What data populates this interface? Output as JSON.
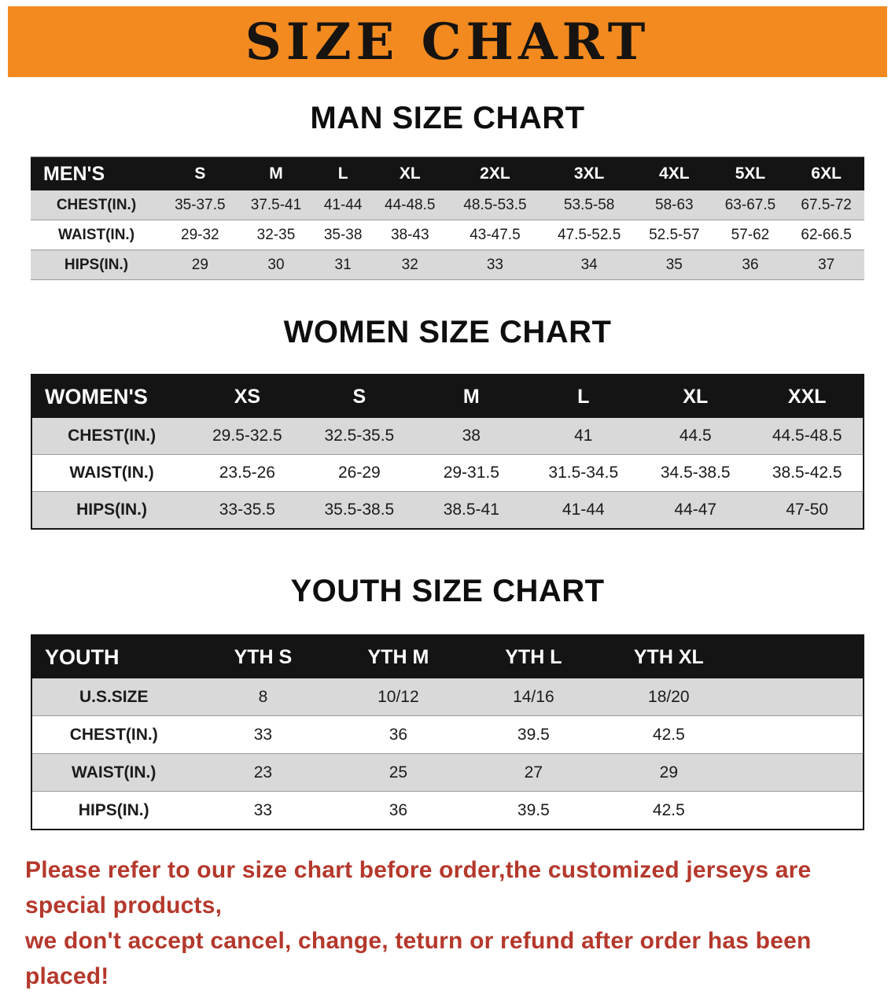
{
  "banner": {
    "title": "SIZE CHART"
  },
  "sections": [
    {
      "kind": "men",
      "heading": "MAN SIZE CHART",
      "table": {
        "header": [
          "MEN'S",
          "S",
          "M",
          "L",
          "XL",
          "2XL",
          "3XL",
          "4XL",
          "5XL",
          "6XL"
        ],
        "rows": [
          [
            "CHEST(IN.)",
            "35-37.5",
            "37.5-41",
            "41-44",
            "44-48.5",
            "48.5-53.5",
            "53.5-58",
            "58-63",
            "63-67.5",
            "67.5-72"
          ],
          [
            "WAIST(IN.)",
            "29-32",
            "32-35",
            "35-38",
            "38-43",
            "43-47.5",
            "47.5-52.5",
            "52.5-57",
            "57-62",
            "62-66.5"
          ],
          [
            "HIPS(IN.)",
            "29",
            "30",
            "31",
            "32",
            "33",
            "34",
            "35",
            "36",
            "37"
          ]
        ]
      }
    },
    {
      "kind": "women",
      "heading": "WOMEN SIZE CHART",
      "table": {
        "header": [
          "WOMEN'S",
          "XS",
          "S",
          "M",
          "L",
          "XL",
          "XXL"
        ],
        "rows": [
          [
            "CHEST(IN.)",
            "29.5-32.5",
            "32.5-35.5",
            "38",
            "41",
            "44.5",
            "44.5-48.5"
          ],
          [
            "WAIST(IN.)",
            "23.5-26",
            "26-29",
            "29-31.5",
            "31.5-34.5",
            "34.5-38.5",
            "38.5-42.5"
          ],
          [
            "HIPS(IN.)",
            "33-35.5",
            "35.5-38.5",
            "38.5-41",
            "41-44",
            "44-47",
            "47-50"
          ]
        ]
      }
    },
    {
      "kind": "youth",
      "heading": "YOUTH SIZE CHART",
      "table": {
        "header": [
          "YOUTH",
          "YTH S",
          "YTH M",
          "YTH L",
          "YTH XL"
        ],
        "rows": [
          [
            "U.S.SIZE",
            "8",
            "10/12",
            "14/16",
            "18/20"
          ],
          [
            "CHEST(IN.)",
            "33",
            "36",
            "39.5",
            "42.5"
          ],
          [
            "WAIST(IN.)",
            "23",
            "25",
            "27",
            "29"
          ],
          [
            "HIPS(IN.)",
            "33",
            "36",
            "39.5",
            "42.5"
          ]
        ]
      }
    }
  ],
  "disclaimer": {
    "lines": [
      "Please refer to our size chart before order,the customized jerseys are special products,",
      "we don't accept cancel, change, teturn or refund after order has been placed!"
    ]
  },
  "colors": {
    "banner_bg": "#f28a20",
    "table_header_bg": "#141414",
    "row_stripe": "#d9d9d9",
    "disclaimer_text": "#b5382c"
  }
}
